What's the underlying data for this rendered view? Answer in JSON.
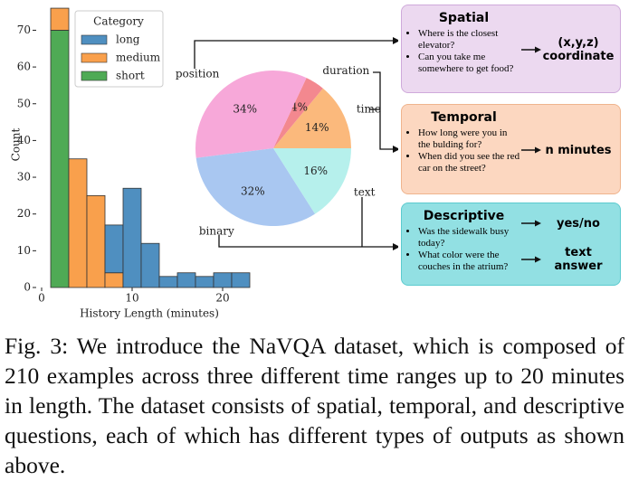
{
  "chart_data": [
    {
      "type": "histogram",
      "xlabel": "History Length (minutes)",
      "ylabel": "Count",
      "bins": [
        1,
        3,
        5,
        7,
        9,
        11,
        13,
        15,
        17,
        19,
        21,
        23
      ],
      "series": [
        {
          "name": "long",
          "color": "#4f8fc0",
          "values": [
            0,
            0,
            0,
            13,
            27,
            12,
            3,
            4,
            3,
            4,
            4
          ]
        },
        {
          "name": "medium",
          "color": "#f9a04c",
          "values": [
            6,
            35,
            25,
            4,
            0,
            0,
            0,
            0,
            0,
            0,
            0
          ]
        },
        {
          "name": "short",
          "color": "#4faa55",
          "values": [
            70,
            0,
            0,
            0,
            0,
            0,
            0,
            0,
            0,
            0,
            0
          ]
        }
      ],
      "legend_title": "Category",
      "legend": "upper center",
      "xlim": [
        -0.6,
        24.4
      ],
      "ylim": [
        0,
        77
      ],
      "xticks": [
        0,
        10,
        20
      ],
      "yticks": [
        0,
        10,
        20,
        30,
        40,
        50,
        60,
        70
      ]
    },
    {
      "type": "pie",
      "categories": [
        "time",
        "duration",
        "position",
        "binary",
        "text"
      ],
      "values": [
        14,
        4,
        34,
        32,
        16
      ],
      "value_labels": [
        "14%",
        "4%",
        "34%",
        "32%",
        "16%"
      ],
      "colors": [
        "#fbb97c",
        "#f3888f",
        "#f7a8d9",
        "#a9c7f1",
        "#b6f0ec"
      ]
    }
  ],
  "panels": [
    {
      "title": "Spatial",
      "color": "#ecd9f0",
      "border": "#cfaadb",
      "questions": [
        "Where is the closest elevator?",
        "Can you take me somewhere to get food?"
      ],
      "outputs": [
        "(x,y,z) coordinate"
      ]
    },
    {
      "title": "Temporal",
      "color": "#fcd7c0",
      "border": "#efb48d",
      "questions": [
        "How long were you in the bulding for?",
        "When did you see the red car on the street?"
      ],
      "outputs": [
        "n minutes"
      ]
    },
    {
      "title": "Descriptive",
      "color": "#92e0e3",
      "border": "#5ccbcf",
      "questions": [
        "Was the sidewalk busy today?",
        "What color were the couches in the atrium?"
      ],
      "outputs": [
        "yes/no",
        "text answer"
      ]
    }
  ],
  "caption": "Fig. 3: We introduce the NaVQA dataset, which is composed of 210 examples across three different time ranges up to 20 minutes in length. The dataset consists of spatial, temporal, and descriptive questions, each of which has different types of outputs as shown above."
}
